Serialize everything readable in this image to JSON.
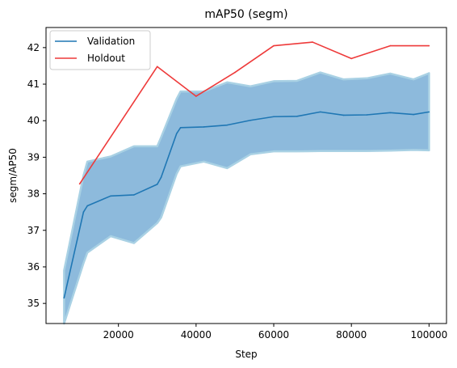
{
  "chart_data": {
    "type": "line",
    "title": "mAP50 (segm)",
    "xlabel": "Step",
    "ylabel": "segm/AP50",
    "xlim": [
      1350,
      104500
    ],
    "ylim": [
      34.45,
      42.55
    ],
    "xticks": [
      20000,
      40000,
      60000,
      80000,
      100000
    ],
    "xtick_labels": [
      "20000",
      "40000",
      "60000",
      "80000",
      "100000"
    ],
    "yticks": [
      35,
      36,
      37,
      38,
      39,
      40,
      41,
      42
    ],
    "ytick_labels": [
      "35",
      "36",
      "37",
      "38",
      "39",
      "40",
      "41",
      "42"
    ],
    "grid": false,
    "legend_position": "top-left",
    "series": [
      {
        "name": "Validation",
        "color": "#1f77b4",
        "band_color": "#8dbadc",
        "band_edge_color": "#a9d1e4",
        "x": [
          6000,
          11000,
          12000,
          18000,
          24000,
          30000,
          31000,
          35000,
          36000,
          42000,
          48000,
          54000,
          60000,
          66000,
          72000,
          78000,
          84000,
          90000,
          96000,
          100000
        ],
        "y": [
          35.15,
          37.5,
          37.67,
          37.94,
          37.97,
          38.26,
          38.45,
          39.65,
          39.81,
          39.83,
          39.88,
          40.01,
          40.11,
          40.12,
          40.24,
          40.15,
          40.16,
          40.22,
          40.17,
          40.24
        ],
        "lower": [
          34.45,
          36.1,
          36.39,
          36.84,
          36.65,
          37.2,
          37.35,
          38.55,
          38.75,
          38.88,
          38.7,
          39.08,
          39.16,
          39.16,
          39.17,
          39.17,
          39.17,
          39.18,
          39.2,
          39.19
        ],
        "upper": [
          35.9,
          38.5,
          38.88,
          39.02,
          39.3,
          39.3,
          39.55,
          40.6,
          40.8,
          40.8,
          41.05,
          40.94,
          41.08,
          41.09,
          41.32,
          41.13,
          41.16,
          41.29,
          41.13,
          41.3
        ]
      },
      {
        "name": "Holdout",
        "color": "#ee3a3a",
        "x": [
          10000,
          30000,
          40000,
          50000,
          60000,
          70000,
          80000,
          90000,
          100000
        ],
        "y": [
          38.27,
          41.48,
          40.67,
          41.32,
          42.05,
          42.15,
          41.7,
          42.05,
          42.05
        ]
      }
    ]
  }
}
